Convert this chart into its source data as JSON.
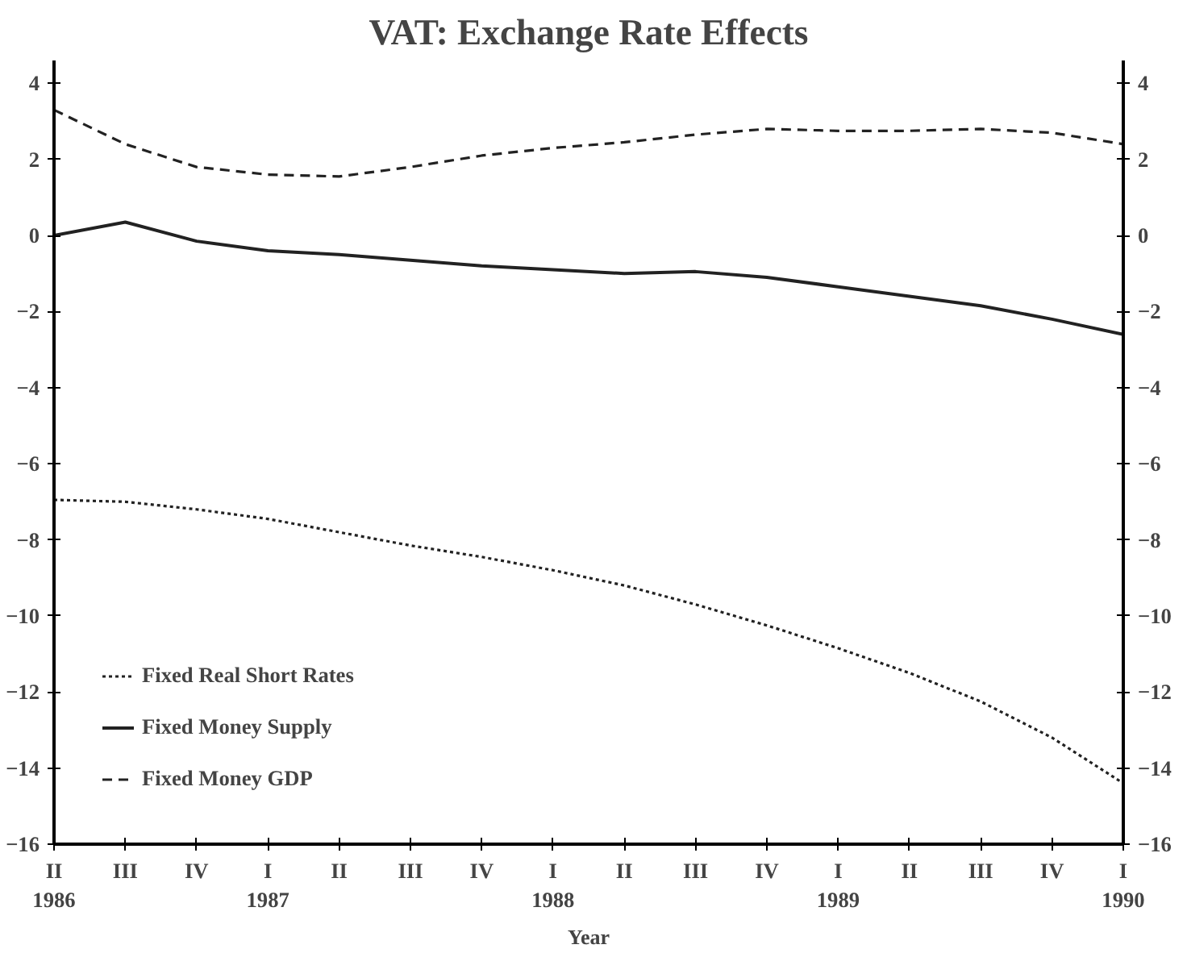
{
  "chart_data": {
    "type": "line",
    "title": "VAT: Exchange Rate Effects",
    "xlabel": "Year",
    "categories": [
      "II\n1986",
      "III",
      "IV",
      "I\n1987",
      "II",
      "III",
      "IV",
      "I\n1988",
      "II",
      "III",
      "IV",
      "I\n1989",
      "II",
      "III",
      "IV",
      "I\n1990"
    ],
    "series": [
      {
        "name": "Fixed Real Short Rates",
        "color": "#222222",
        "line_style": "dotted",
        "values": [
          -6.95,
          -7.0,
          -7.2,
          -7.45,
          -7.8,
          -8.15,
          -8.45,
          -8.8,
          -9.2,
          -9.7,
          -10.25,
          -10.85,
          -11.5,
          -12.25,
          -13.2,
          -14.4
        ]
      },
      {
        "name": "Fixed Money Supply",
        "color": "#222222",
        "line_style": "solid",
        "values": [
          0,
          0.35,
          -0.15,
          -0.4,
          -0.5,
          -0.65,
          -0.8,
          -0.9,
          -1.0,
          -0.95,
          -1.1,
          -1.35,
          -1.6,
          -1.85,
          -2.2,
          -2.6
        ]
      },
      {
        "name": "Fixed Money GDP",
        "color": "#222222",
        "line_style": "dashed",
        "values": [
          3.3,
          2.4,
          1.8,
          1.6,
          1.55,
          1.8,
          2.1,
          2.3,
          2.45,
          2.65,
          2.8,
          2.75,
          2.75,
          2.8,
          2.7,
          2.4
        ]
      }
    ],
    "ylim": [
      -16,
      4.6
    ],
    "yticks": [
      4,
      2,
      0,
      -2,
      -4,
      -6,
      -8,
      -10,
      -12,
      -14,
      -16
    ],
    "y2lim": [
      -16,
      4.6
    ],
    "y2ticks": [
      4,
      2,
      0,
      -2,
      -4,
      -6,
      -8,
      -10,
      -12,
      -14,
      -16
    ],
    "grid": false,
    "legend": "bottom left",
    "marker": "none"
  }
}
